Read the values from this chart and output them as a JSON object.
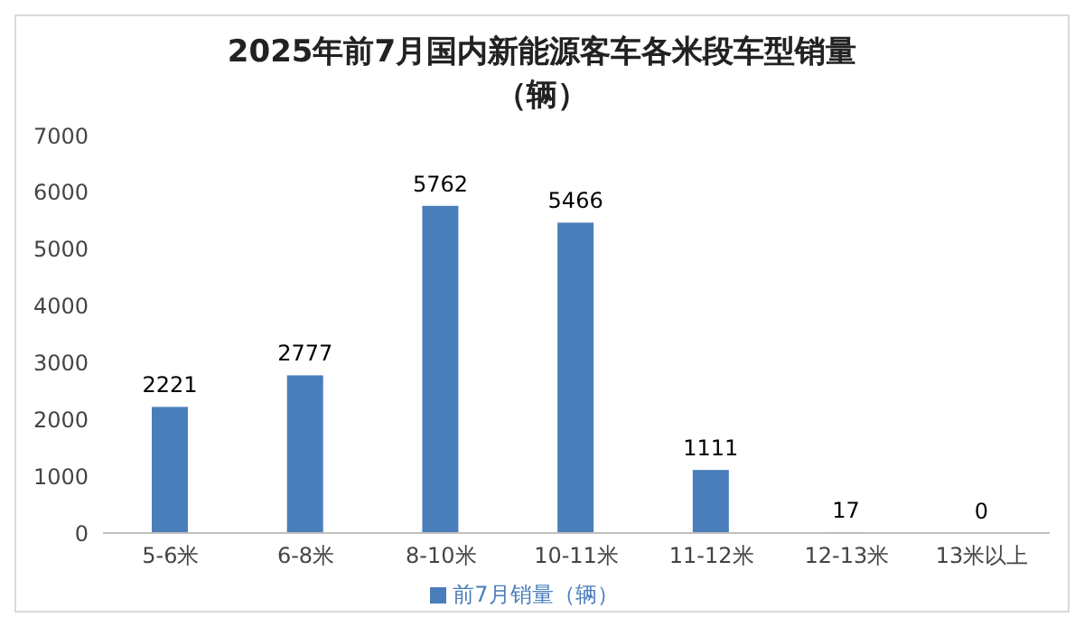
{
  "chart_data": {
    "type": "bar",
    "title": "2025年前7月国内新能源客车各米段车型销量（辆）",
    "categories": [
      "5-6米",
      "6-8米",
      "8-10米",
      "10-11米",
      "11-12米",
      "12-13米",
      "13米以上"
    ],
    "series": [
      {
        "name": "前7月销量（辆）",
        "color": "#4a7ebb",
        "values": [
          2221,
          2777,
          5762,
          5466,
          1111,
          17,
          0
        ]
      }
    ],
    "ylim": [
      0,
      7000
    ],
    "yticks": [
      0,
      1000,
      2000,
      3000,
      4000,
      5000,
      6000,
      7000
    ],
    "grid": false,
    "legend": "bottom",
    "data_labels": true
  }
}
